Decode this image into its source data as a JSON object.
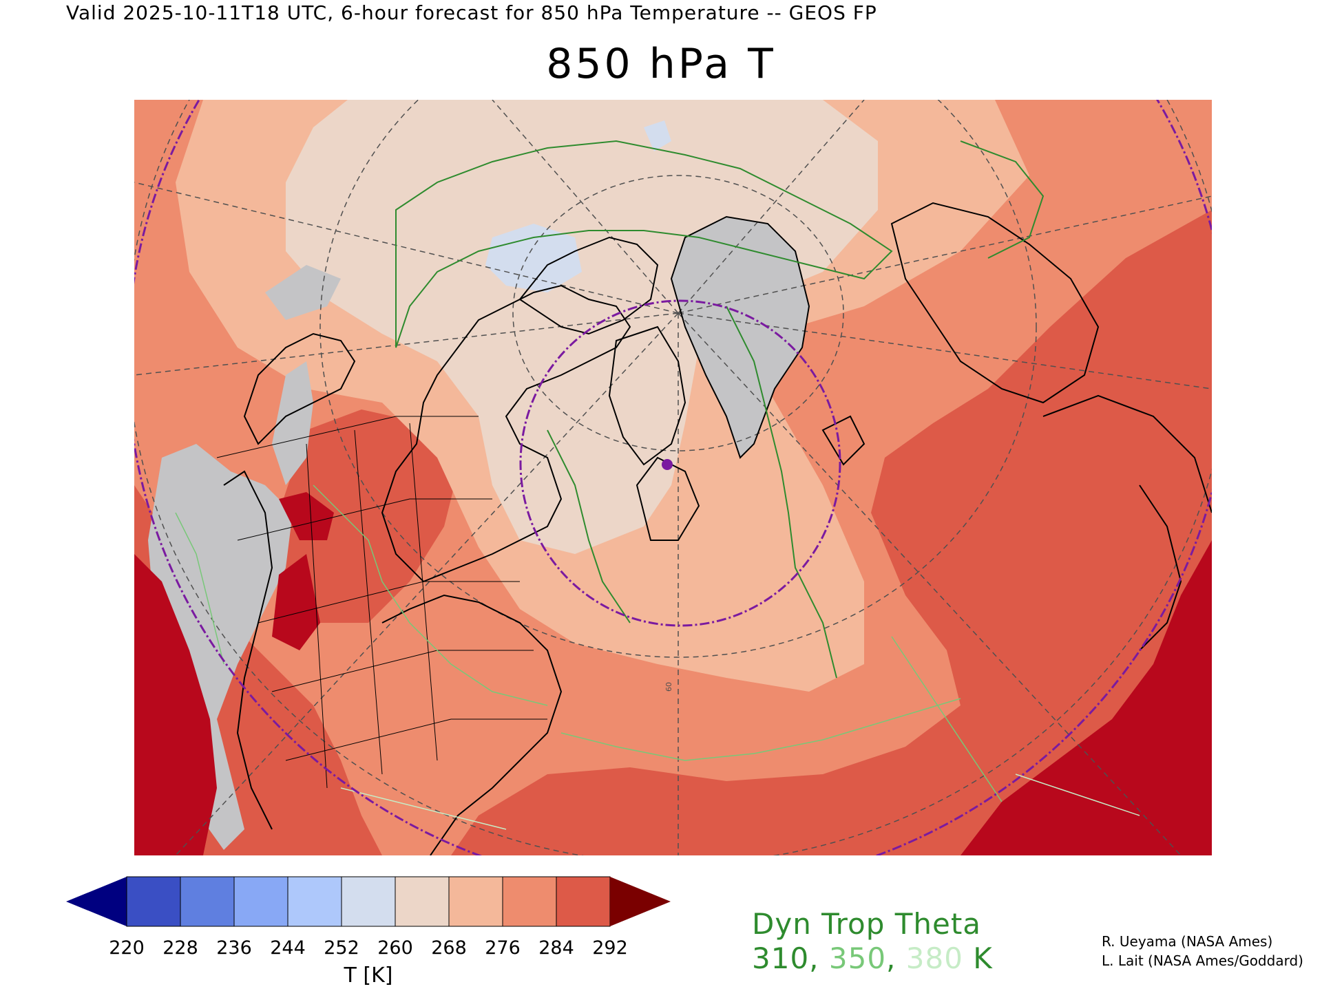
{
  "header": {
    "valid_line": "Valid 2025-10-11T18 UTC, 6-hour forecast for 850 hPa Temperature -- GEOS FP",
    "title": "850 hPa T"
  },
  "map": {
    "projection": "north-polar-stereographic",
    "gridline_label": "60",
    "marker": "purple-dot",
    "shading_colors": {
      "below_220": "#000080",
      "220_228": "#3a4fc4",
      "228_236": "#5f7fe0",
      "236_244": "#88a8f5",
      "244_252": "#aec8fb",
      "252_260": "#d3ddee",
      "260_268": "#ecd6c8",
      "268_276": "#f4b89a",
      "276_284": "#ee8c6e",
      "284_292": "#dd5a48",
      "above_292": "#7a0000",
      "land_mask": "#c4c4c6",
      "extreme": "#b8081c"
    },
    "contour_colors": {
      "theta_310": "#2e8b2e",
      "theta_350": "#78c878",
      "theta_380": "#c6ecc6"
    },
    "outline_color": "#000000",
    "ring_color": "#7a1aa0",
    "grid_color": "#505050"
  },
  "colorbar": {
    "labels": [
      "220",
      "228",
      "236",
      "244",
      "252",
      "260",
      "268",
      "276",
      "284",
      "292"
    ],
    "units": "T [K]",
    "colors": [
      "#000080",
      "#3a4fc4",
      "#5f7fe0",
      "#88a8f5",
      "#aec8fb",
      "#d3ddee",
      "#ecd6c8",
      "#f4b89a",
      "#ee8c6e",
      "#dd5a48",
      "#7a0000"
    ]
  },
  "legend": {
    "title": "Dyn Trop Theta",
    "values": [
      {
        "text": "310",
        "color": "#2e8b2e"
      },
      {
        "text": ", ",
        "color": "#2e8b2e"
      },
      {
        "text": "350",
        "color": "#78c878"
      },
      {
        "text": ", ",
        "color": "#2e8b2e"
      },
      {
        "text": "380",
        "color": "#c6ecc6"
      },
      {
        "text": " K",
        "color": "#2e8b2e"
      }
    ]
  },
  "credits": {
    "line1": "R. Ueyama (NASA Ames)",
    "line2": "L. Lait (NASA Ames/Goddard)"
  }
}
